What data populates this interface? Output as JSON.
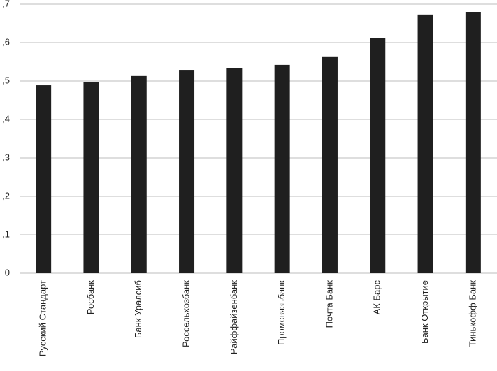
{
  "chart_data": {
    "type": "bar",
    "categories": [
      "Русский Стандарт",
      "Росбанк",
      "Банк Уралсиб",
      "Россельхозбанк",
      "Райффайзенбанк",
      "Промсвязьбанк",
      "Почта Банк",
      "АК Барс",
      "Банк Открытие",
      "Тинькофф Банк"
    ],
    "values": [
      0.489,
      0.498,
      0.513,
      0.529,
      0.533,
      0.542,
      0.564,
      0.611,
      0.673,
      0.68
    ],
    "color": "#1f1f1f",
    "ylim": [
      0,
      0.7
    ],
    "yticks": [
      0,
      {
        "value": 0.1,
        "label": ",1"
      },
      {
        "value": 0.2,
        "label": ",2"
      },
      {
        "value": 0.3,
        "label": ",3"
      },
      {
        "value": 0.4,
        "label": ",4"
      },
      {
        "value": 0.5,
        "label": ",5"
      },
      {
        "value": 0.6,
        "label": ",6"
      },
      {
        "value": 0.7,
        "label": ",7"
      }
    ],
    "grid": true
  }
}
